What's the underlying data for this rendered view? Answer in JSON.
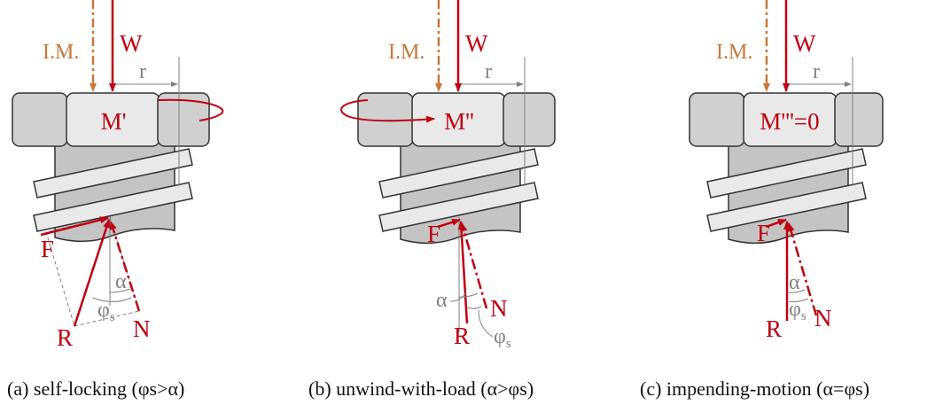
{
  "colors": {
    "force_red": "#c0000f",
    "im_orange": "#c8773a",
    "geometry_gray": "#808080",
    "part_fill": "#d0d0d0",
    "bolt_fill": "#c4c4c4",
    "thread_fill": "#e9e9e9"
  },
  "labels": {
    "im": "I.M.",
    "w": "W",
    "r": "r",
    "f": "F",
    "r_force": "R",
    "n": "N",
    "alpha": "α",
    "phi_s": "φ",
    "phi_sub": "s"
  },
  "panels": [
    {
      "moment": "M'",
      "caption": "(a) self-locking (φs>α)"
    },
    {
      "moment": "M''",
      "caption": "(b) unwind-with-load (α>φs)"
    },
    {
      "moment": "M'''=0",
      "caption": "(c) impending-motion (α=φs)"
    }
  ]
}
